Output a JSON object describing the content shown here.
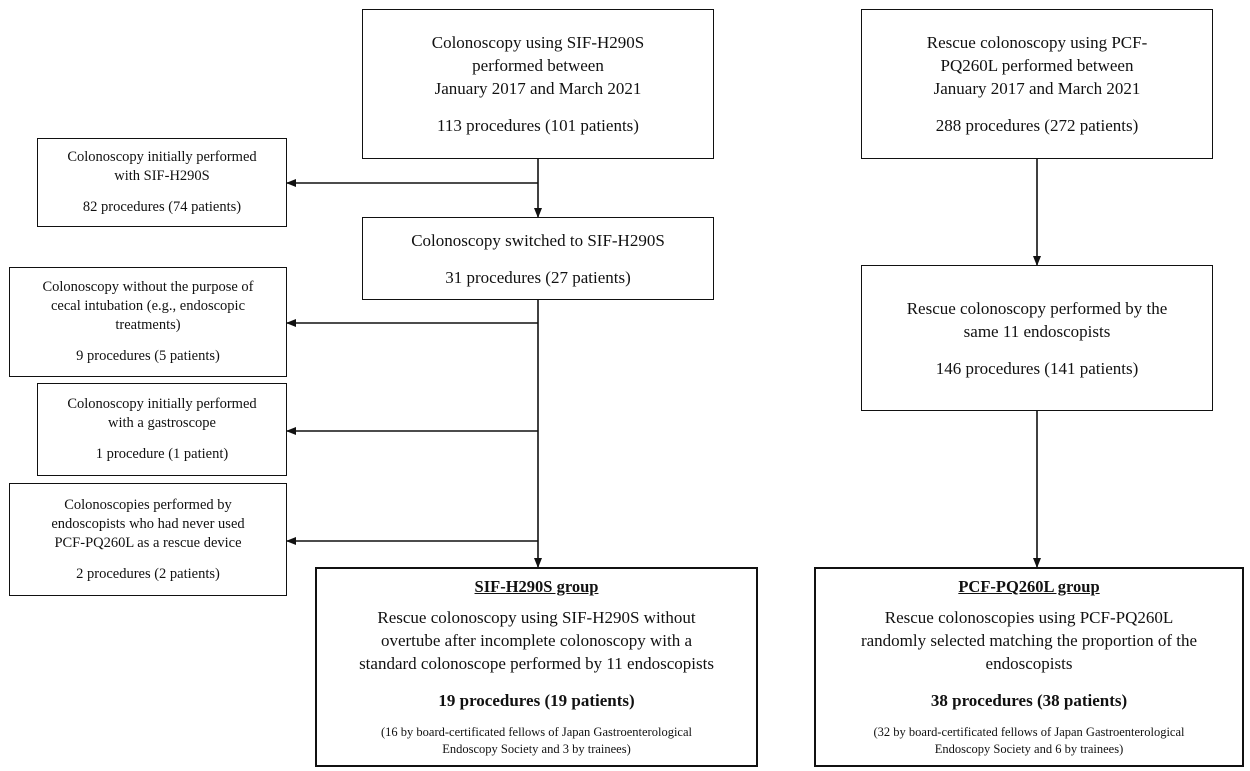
{
  "left_top": {
    "lines": [
      "Colonoscopy using SIF-H290S",
      "performed between",
      "January 2017 and March 2021"
    ],
    "count": "113 procedures (101 patients)"
  },
  "right_top": {
    "lines": [
      "Rescue colonoscopy using PCF-",
      "PQ260L performed between",
      "January 2017 and March 2021"
    ],
    "count": "288 procedures (272 patients)"
  },
  "excl_initial_sif": {
    "lines": [
      "Colonoscopy initially performed",
      "with SIF-H290S"
    ],
    "count": "82 procedures (74 patients)"
  },
  "switched": {
    "line": "Colonoscopy switched to SIF-H290S",
    "count": "31 procedures (27 patients)"
  },
  "excl_no_cecal": {
    "lines": [
      "Colonoscopy without the purpose of",
      "cecal intubation (e.g., endoscopic",
      "treatments)"
    ],
    "count": "9 procedures (5 patients)"
  },
  "excl_gastroscope": {
    "lines": [
      "Colonoscopy initially performed",
      "with a gastroscope"
    ],
    "count": "1 procedure (1 patient)"
  },
  "excl_never_used": {
    "lines": [
      "Colonoscopies performed by",
      "endoscopists who had never used",
      "PCF-PQ260L as a rescue device"
    ],
    "count": "2 procedures (2 patients)"
  },
  "same_endoscopists": {
    "lines": [
      "Rescue colonoscopy performed by the",
      "same 11 endoscopists"
    ],
    "count": "146 procedures (141 patients)"
  },
  "sif_group": {
    "title": "SIF-H290S group",
    "lines": [
      "Rescue colonoscopy using SIF-H290S without",
      "overtube after incomplete colonoscopy with a",
      "standard colonoscope performed by 11 endoscopists"
    ],
    "count": "19 procedures (19 patients)",
    "notes": [
      "(16 by board-certificated fellows of Japan Gastroenterological",
      "Endoscopy Society and 3 by trainees)"
    ]
  },
  "pcf_group": {
    "title": "PCF-PQ260L group",
    "lines": [
      "Rescue colonoscopies using PCF-PQ260L",
      "randomly selected matching the proportion of the",
      "endoscopists"
    ],
    "count": "38 procedures (38 patients)",
    "notes": [
      "(32 by board-certificated fellows of Japan Gastroenterological",
      "Endoscopy Society and 6 by trainees)"
    ]
  }
}
